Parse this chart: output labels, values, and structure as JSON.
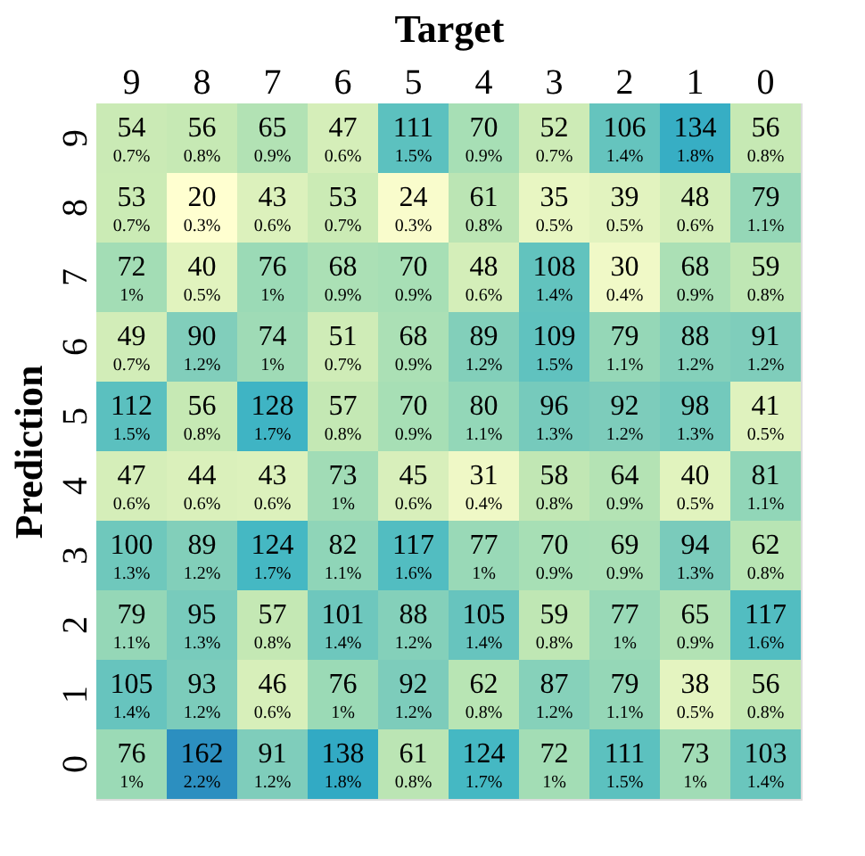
{
  "chart_data": {
    "type": "heatmap",
    "xlabel": "Target",
    "ylabel": "Prediction",
    "categories": [
      "9",
      "8",
      "7",
      "6",
      "5",
      "4",
      "3",
      "2",
      "1",
      "0"
    ],
    "y_categories": [
      "9",
      "8",
      "7",
      "6",
      "5",
      "4",
      "3",
      "2",
      "1",
      "0"
    ],
    "cells": [
      [
        54,
        56,
        65,
        47,
        111,
        70,
        52,
        106,
        134,
        56
      ],
      [
        53,
        20,
        43,
        53,
        24,
        61,
        35,
        39,
        48,
        79
      ],
      [
        72,
        40,
        76,
        68,
        70,
        48,
        108,
        30,
        68,
        59
      ],
      [
        49,
        90,
        74,
        51,
        68,
        89,
        109,
        79,
        88,
        91
      ],
      [
        112,
        56,
        128,
        57,
        70,
        80,
        96,
        92,
        98,
        41
      ],
      [
        47,
        44,
        43,
        73,
        45,
        31,
        58,
        64,
        40,
        81
      ],
      [
        100,
        89,
        124,
        82,
        117,
        77,
        70,
        69,
        94,
        62
      ],
      [
        79,
        95,
        57,
        101,
        88,
        105,
        59,
        77,
        65,
        117
      ],
      [
        105,
        93,
        46,
        76,
        92,
        62,
        87,
        79,
        38,
        56
      ],
      [
        76,
        162,
        91,
        138,
        61,
        124,
        72,
        111,
        73,
        103
      ]
    ],
    "data_labels": true,
    "annotations": [
      "0.7%",
      "0.8%",
      "0.9%",
      "0.6%",
      "1.5%",
      "0.9%",
      "0.7%",
      "1.4%",
      "1.8%",
      "0.8%",
      "0.7%",
      "0.3%",
      "0.6%",
      "0.7%",
      "0.3%",
      "0.8%",
      "0.5%",
      "0.5%",
      "0.6%",
      "1.1%",
      "1%",
      "0.5%",
      "1%",
      "0.9%",
      "0.9%",
      "0.6%",
      "1.4%",
      "0.4%",
      "0.9%",
      "0.8%",
      "0.7%",
      "1.2%",
      "1%",
      "0.7%",
      "0.9%",
      "1.2%",
      "1.5%",
      "1.1%",
      "1.2%",
      "1.2%",
      "1.5%",
      "0.8%",
      "1.7%",
      "0.8%",
      "0.9%",
      "1.1%",
      "1.3%",
      "1.2%",
      "1.3%",
      "0.5%",
      "0.6%",
      "0.6%",
      "0.6%",
      "1%",
      "0.6%",
      "0.4%",
      "0.8%",
      "0.9%",
      "0.5%",
      "1.1%",
      "1.3%",
      "1.2%",
      "1.7%",
      "1.1%",
      "1.6%",
      "1%",
      "0.9%",
      "0.9%",
      "1.3%",
      "0.8%",
      "1.1%",
      "1.3%",
      "0.8%",
      "1.4%",
      "1.2%",
      "1.4%",
      "0.8%",
      "1%",
      "0.9%",
      "1.6%",
      "1.4%",
      "1.2%",
      "0.6%",
      "1%",
      "1.2%",
      "0.8%",
      "1.2%",
      "1.1%",
      "0.5%",
      "0.8%",
      "1%",
      "2.2%",
      "1.2%",
      "1.8%",
      "0.8%",
      "1.7%",
      "1%",
      "1.5%",
      "1%",
      "1.4%"
    ]
  }
}
